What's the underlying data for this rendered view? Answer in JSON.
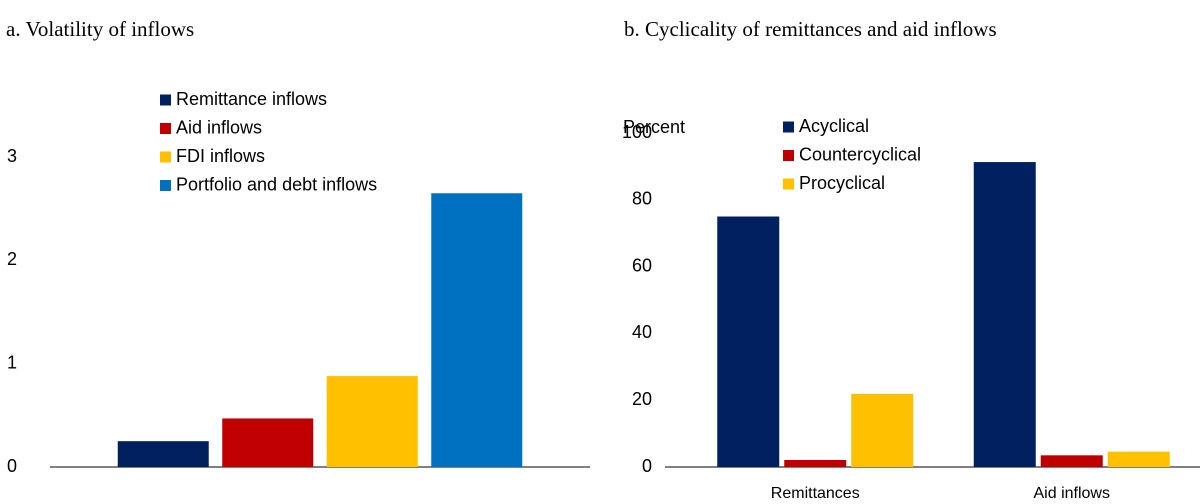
{
  "chart_data": [
    {
      "type": "bar",
      "title": "a. Volatility of inflows",
      "categories": [
        null
      ],
      "series": [
        {
          "name": "Remittance inflows",
          "color": "#002060",
          "values": [
            0.25
          ]
        },
        {
          "name": "Aid inflows",
          "color": "#c00000",
          "values": [
            0.47
          ]
        },
        {
          "name": "FDI inflows",
          "color": "#ffc000",
          "values": [
            0.88
          ]
        },
        {
          "name": "Portfolio and debt inflows",
          "color": "#0070c0",
          "values": [
            2.65
          ]
        }
      ],
      "ylim": [
        0,
        3.5
      ],
      "yticks": [
        0,
        1,
        2,
        3
      ],
      "grid": false
    },
    {
      "type": "bar",
      "title": "b. Cyclicality of remittances and aid inflows",
      "y_axis_label": "Percent",
      "categories": [
        "Remittances",
        "Aid inflows"
      ],
      "series": [
        {
          "name": "Acyclical",
          "color": "#002060",
          "values": [
            75,
            91.3
          ]
        },
        {
          "name": "Countercyclical",
          "color": "#c00000",
          "values": [
            2.1,
            3.5
          ]
        },
        {
          "name": "Procyclical",
          "color": "#ffc000",
          "values": [
            21.9,
            4.6
          ]
        }
      ],
      "ylim": [
        0,
        100
      ],
      "yticks": [
        0,
        20,
        40,
        60,
        80,
        100
      ],
      "grid": false
    }
  ]
}
